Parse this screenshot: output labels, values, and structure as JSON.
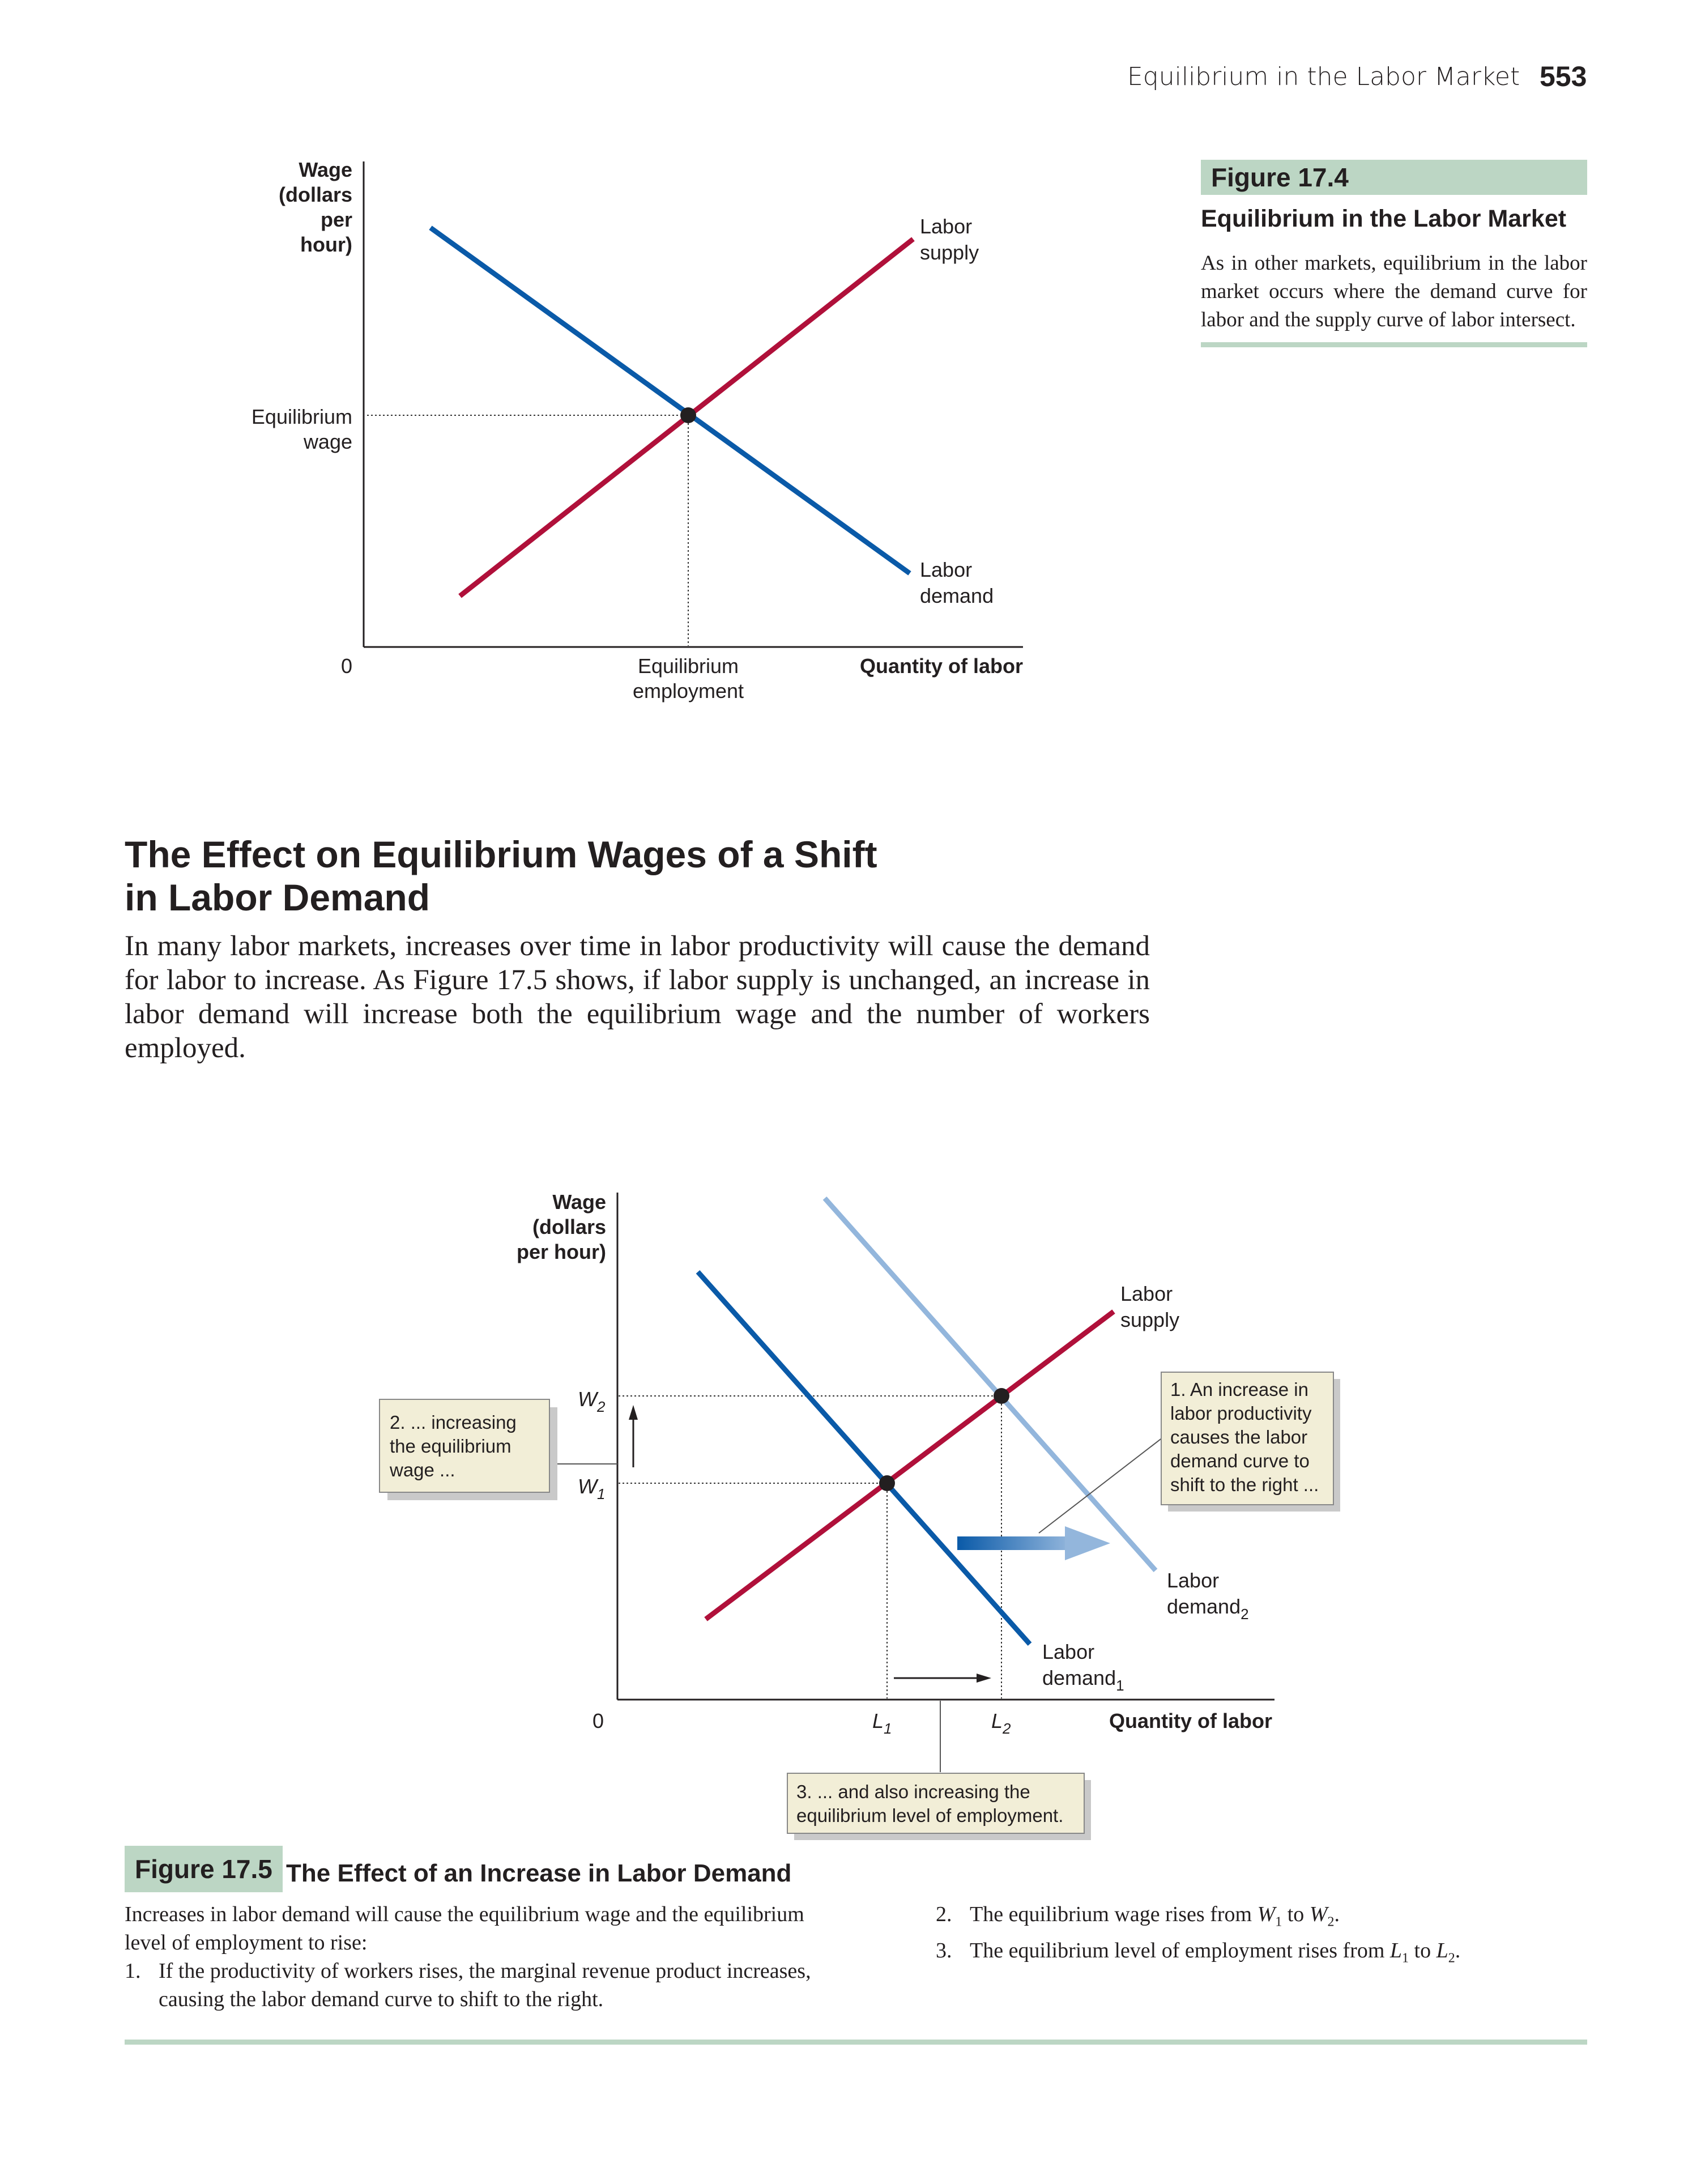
{
  "header": {
    "running_title": "Equilibrium in the Labor Market",
    "page_number": "553"
  },
  "figure_17_4": {
    "label": "Figure 17.4",
    "title": "Equilibrium in the Labor Market",
    "caption": "As in other markets, equilibrium in the labor market occurs where the demand curve for labor and the supply curve of labor intersect.",
    "y_axis_label": [
      "Wage",
      "(dollars",
      "per",
      "hour)"
    ],
    "x_axis_label": "Quantity of labor",
    "origin": "0",
    "eq_wage_label": [
      "Equilibrium",
      "wage"
    ],
    "eq_employment_label": [
      "Equilibrium",
      "employment"
    ],
    "supply_label": [
      "Labor",
      "supply"
    ],
    "demand_label": [
      "Labor",
      "demand"
    ],
    "colors": {
      "supply": "#b0103a",
      "demand": "#0a5aa8"
    }
  },
  "section": {
    "heading_line1": "The Effect on Equilibrium Wages of a Shift",
    "heading_line2": "in Labor Demand",
    "paragraph": "In many labor markets, increases over time in labor productivity will cause the demand for labor to increase. As Figure 17.5 shows, if labor supply is unchanged, an increase in labor demand will increase both the equilibrium wage and the number of workers employed."
  },
  "figure_17_5": {
    "label": "Figure 17.5",
    "title": "The Effect of an Increase in Labor Demand",
    "y_axis_label": [
      "Wage",
      "(dollars",
      "per hour)"
    ],
    "x_axis_label": "Quantity of labor",
    "origin": "0",
    "w1": "W",
    "w1_sub": "1",
    "w2": "W",
    "w2_sub": "2",
    "l1": "L",
    "l1_sub": "1",
    "l2": "L",
    "l2_sub": "2",
    "supply_label": [
      "Labor",
      "supply"
    ],
    "demand1_label": "Labor",
    "demand1_label2": "demand",
    "demand1_sub": "1",
    "demand2_label": "Labor",
    "demand2_label2": "demand",
    "demand2_sub": "2",
    "callout_1": [
      "1. An increase in",
      "labor productivity",
      "causes the labor",
      "demand curve to",
      "shift to the right ..."
    ],
    "callout_2": [
      "2. ... increasing",
      "the equilibrium",
      "wage ..."
    ],
    "callout_3": [
      "3. ... and also increasing the",
      "equilibrium level of employment."
    ],
    "colors": {
      "supply": "#b0103a",
      "demand1": "#0a5aa8",
      "demand2": "#93b6dc",
      "callout_bg": "#f2eed7"
    },
    "caption_intro": "Increases in labor demand will cause the equilibrium wage and the equilibrium level of employment to rise:",
    "caption_items": [
      {
        "num": "1.",
        "text": "If the productivity of workers rises, the marginal revenue product increases, causing the labor demand curve to shift to the right."
      }
    ],
    "caption_items_right": [
      {
        "num": "2.",
        "pre": "The equilibrium wage rises from ",
        "a": "W",
        "a_sub": "1",
        "mid": " to ",
        "b": "W",
        "b_sub": "2",
        "post": "."
      },
      {
        "num": "3.",
        "pre": "The equilibrium level of employment rises from ",
        "a": "L",
        "a_sub": "1",
        "mid": " to ",
        "b": "L",
        "b_sub": "2",
        "post": "."
      }
    ]
  }
}
